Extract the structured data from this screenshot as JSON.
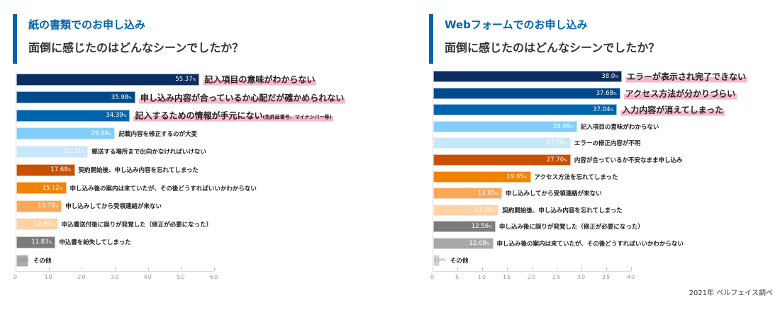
{
  "source": "2021年 ベルフェイス調べ",
  "colors": {
    "accent": "#0064ad",
    "highlight": "#f9b8c9"
  },
  "chart_data": [
    {
      "type": "bar",
      "orientation": "horizontal",
      "title": "紙の書類でのお申し込み",
      "subtitle": "面倒に感じたのはどんなシーンでしたか？",
      "unit": "%",
      "xlim": [
        0,
        60
      ],
      "ticks": [
        0,
        10,
        20,
        30,
        40,
        50,
        60
      ],
      "categories": [
        {
          "label": "記入項目の意味がわからない",
          "note": "",
          "highlight": true
        },
        {
          "label": "申し込み内容が合っているか心配だが確かめられない",
          "note": "",
          "highlight": true
        },
        {
          "label": "記入するための情報が手元にない",
          "note": "(免許証番号、マイナンバー等)",
          "highlight": true
        },
        {
          "label": "記載内容を修正するのが大変",
          "note": "",
          "highlight": false
        },
        {
          "label": "郵送する場所まで出向かなければいけない",
          "note": "",
          "highlight": false
        },
        {
          "label": "契約開始後、申し込み内容を忘れてしまった",
          "note": "",
          "highlight": false
        },
        {
          "label": "申し込み後の案内は来ていたが、その後どうすればいいかわからない",
          "note": "",
          "highlight": false
        },
        {
          "label": "申し込みしてから受領連絡が来ない",
          "note": "",
          "highlight": false
        },
        {
          "label": "申込書送付後に誤りが発覚した（修正が必要になった）",
          "note": "",
          "highlight": false
        },
        {
          "label": "申込書を紛失してしまった",
          "note": "",
          "highlight": false
        },
        {
          "label": "その他",
          "note": "",
          "highlight": false
        }
      ],
      "values": [
        55.37,
        35.98,
        34.39,
        29.88,
        21.71,
        17.68,
        15.12,
        13.78,
        12.56,
        11.83,
        3.66
      ],
      "value_labels": [
        "55.37",
        "35.98",
        "34.39",
        "29.88",
        "21.71",
        "17.68",
        "15.12",
        "13.78",
        "12.56",
        "11.83",
        "3.66"
      ],
      "bar_colors": [
        "#0b2d5f",
        "#004a8c",
        "#0064ad",
        "#82cdfa",
        "#c9e7fb",
        "#c85000",
        "#f08300",
        "#f9a858",
        "#fdd3a6",
        "#7b7b7b",
        "#aaaaaa"
      ],
      "grid": false
    },
    {
      "type": "bar",
      "orientation": "horizontal",
      "title": "Webフォームでのお申し込み",
      "subtitle": "面倒に感じたのはどんなシーンでしたか？",
      "unit": "%",
      "xlim": [
        0,
        40
      ],
      "ticks": [
        0,
        5,
        10,
        15,
        20,
        25,
        30,
        35,
        40
      ],
      "categories": [
        {
          "label": "エラーが表示され完了できない",
          "note": "",
          "highlight": true
        },
        {
          "label": "アクセス方法が分かりづらい",
          "note": "",
          "highlight": true
        },
        {
          "label": "入力内容が消えてしまった",
          "note": "",
          "highlight": true
        },
        {
          "label": "記入項目の意味がわからない",
          "note": "",
          "highlight": false
        },
        {
          "label": "エラーの修正内容が不明",
          "note": "",
          "highlight": false
        },
        {
          "label": "内容が合っているか不安なまま申し込み",
          "note": "",
          "highlight": false
        },
        {
          "label": "アクセス方法を忘れてしまった",
          "note": "",
          "highlight": false
        },
        {
          "label": "申し込みしてから受領連絡が来ない",
          "note": "",
          "highlight": false
        },
        {
          "label": "契約開始後、申し込み内容を忘れてしまった",
          "note": "",
          "highlight": false
        },
        {
          "label": "申し込み後に誤りが発覚した（修正が必要になった）",
          "note": "",
          "highlight": false
        },
        {
          "label": "申し込み後の案内は来ていたが、その後どうすればいいかわからない",
          "note": "",
          "highlight": false
        },
        {
          "label": "その他",
          "note": "",
          "highlight": false
        }
      ],
      "values": [
        38.0,
        37.68,
        37.04,
        28.99,
        27.7,
        27.7,
        19.65,
        13.85,
        13.2,
        12.56,
        12.08,
        1.29
      ],
      "value_labels": [
        "38.0",
        "37.68",
        "37.04",
        "28.99",
        "27.70",
        "27.70",
        "19.65",
        "13.85",
        "13.20",
        "12.56",
        "12.08",
        "1.29"
      ],
      "bar_colors": [
        "#0b2d5f",
        "#004a8c",
        "#0064ad",
        "#82cdfa",
        "#c9e7fb",
        "#c85000",
        "#f08300",
        "#f9a858",
        "#fdd3a6",
        "#7b7b7b",
        "#a8a8a8",
        "#d0d0d0"
      ],
      "grid": false
    }
  ]
}
